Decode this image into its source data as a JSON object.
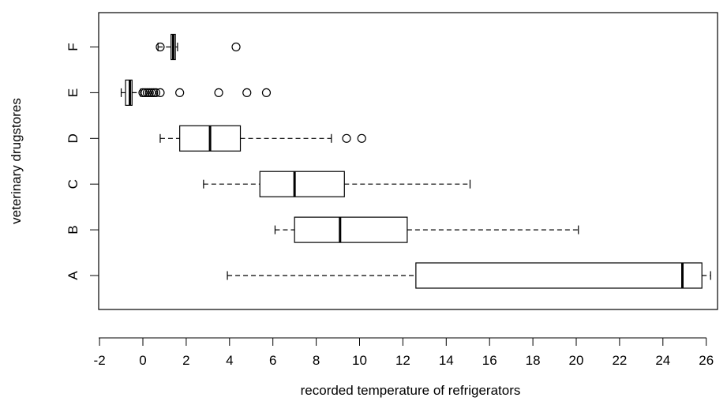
{
  "chart_data": {
    "type": "boxplot",
    "orientation": "horizontal",
    "title": "",
    "xlabel": "recorded temperature of refrigerators",
    "ylabel": "veterinary drugstores",
    "xlim": [
      -2,
      26
    ],
    "x_ticks": [
      -2,
      0,
      2,
      4,
      6,
      8,
      10,
      12,
      14,
      16,
      18,
      20,
      22,
      24,
      26
    ],
    "x_tick_labels": [
      "-2",
      "0",
      "2",
      "4",
      "6",
      "8",
      "10",
      "12",
      "14",
      "16",
      "18",
      "20",
      "22",
      "24",
      "26"
    ],
    "categories": [
      "A",
      "B",
      "C",
      "D",
      "E",
      "F"
    ],
    "boxes": [
      {
        "label": "A",
        "whisker_low": 3.9,
        "q1": 12.6,
        "median": 24.9,
        "q3": 25.8,
        "whisker_high": 26.2,
        "outliers": []
      },
      {
        "label": "B",
        "whisker_low": 6.1,
        "q1": 7.0,
        "median": 9.1,
        "q3": 12.2,
        "whisker_high": 20.1,
        "outliers": []
      },
      {
        "label": "C",
        "whisker_low": 2.8,
        "q1": 5.4,
        "median": 7.0,
        "q3": 9.3,
        "whisker_high": 15.1,
        "outliers": []
      },
      {
        "label": "D",
        "whisker_low": 0.8,
        "q1": 1.7,
        "median": 3.1,
        "q3": 4.5,
        "whisker_high": 8.7,
        "outliers": [
          9.4,
          10.1
        ]
      },
      {
        "label": "E",
        "whisker_low": -1.0,
        "q1": -0.8,
        "median": -0.6,
        "q3": -0.5,
        "whisker_high": -0.1,
        "outliers": [
          0.0,
          0.1,
          0.2,
          0.3,
          0.4,
          0.5,
          0.6,
          0.8,
          1.7,
          3.5,
          4.8,
          5.7
        ]
      },
      {
        "label": "F",
        "whisker_low": 0.7,
        "q1": 1.3,
        "median": 1.4,
        "q3": 1.5,
        "whisker_high": 1.6,
        "outliers": [
          0.8,
          4.3
        ]
      }
    ],
    "grid": false,
    "legend": "none",
    "colors": {
      "box_fill": "#ffffff",
      "stroke": "#000000"
    }
  }
}
